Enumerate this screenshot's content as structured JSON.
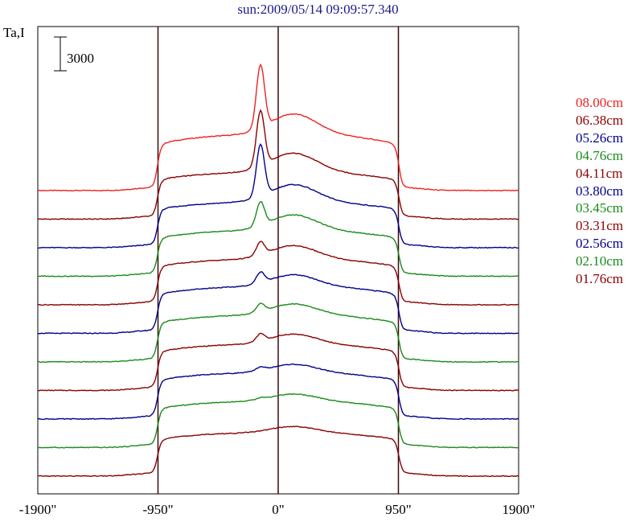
{
  "chart_data": {
    "type": "line",
    "title": "sun:2009/05/14 09:09:57.340",
    "ylabel": "Ta,I",
    "scale_bar_label": "3000",
    "scale_bar_value": 3000,
    "x_tick_labels": [
      "-1900\"",
      "-950\"",
      "0\"",
      "950\"",
      "1900\""
    ],
    "x_ticks": [
      -1900,
      -950,
      0,
      950,
      1900
    ],
    "xlim": [
      -1900,
      1900
    ],
    "vertical_lines_at": [
      -950,
      0,
      950
    ],
    "colors": {
      "red": "#ee2222",
      "maroon": "#8b0000",
      "navy": "#00008b",
      "green": "#1a8a1a"
    },
    "series": [
      {
        "name": "08.00cm",
        "color": "#ee2222",
        "offset": 10,
        "level": 4900,
        "peak": 5600,
        "hump": 1900
      },
      {
        "name": "06.38cm",
        "color": "#8b0000",
        "offset": 9,
        "level": 4100,
        "peak": 4900,
        "hump": 1750
      },
      {
        "name": "05.26cm",
        "color": "#00008b",
        "offset": 8,
        "level": 4000,
        "peak": 4600,
        "hump": 1600
      },
      {
        "name": "04.76cm",
        "color": "#1a8a1a",
        "offset": 7,
        "level": 4000,
        "peak": 2100,
        "hump": 1450
      },
      {
        "name": "04.11cm",
        "color": "#8b0000",
        "offset": 6,
        "level": 4000,
        "peak": 1150,
        "hump": 1250
      },
      {
        "name": "03.80cm",
        "color": "#00008b",
        "offset": 5,
        "level": 4100,
        "peak": 950,
        "hump": 1100
      },
      {
        "name": "03.45cm",
        "color": "#1a8a1a",
        "offset": 4,
        "level": 4100,
        "peak": 700,
        "hump": 1050
      },
      {
        "name": "03.31cm",
        "color": "#8b0000",
        "offset": 3,
        "level": 4050,
        "peak": 650,
        "hump": 950
      },
      {
        "name": "02.56cm",
        "color": "#00008b",
        "offset": 2,
        "level": 4050,
        "peak": 300,
        "hump": 800
      },
      {
        "name": "02.10cm",
        "color": "#1a8a1a",
        "offset": 1,
        "level": 4050,
        "peak": 150,
        "hump": 700
      },
      {
        "name": "01.76cm",
        "color": "#8b0000",
        "offset": 0,
        "level": 3800,
        "peak": 0,
        "hump": 600
      }
    ]
  }
}
